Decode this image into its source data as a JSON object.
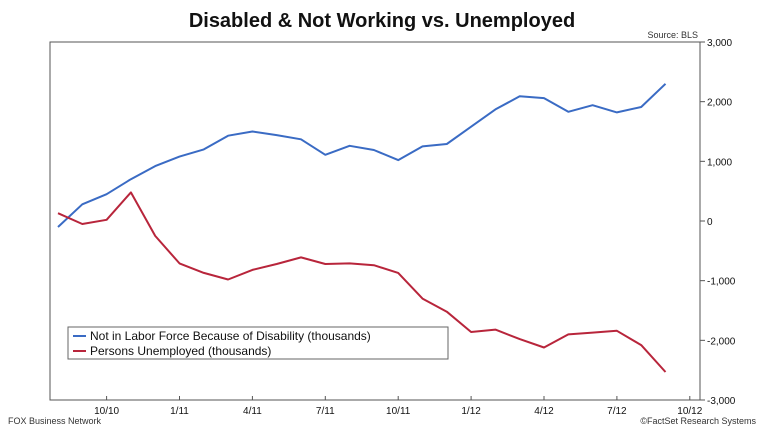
{
  "chart_data": {
    "type": "line",
    "title": "Disabled & Not Working vs. Unemployed",
    "source": "Source: BLS",
    "footer_left": "FOX Business Network",
    "footer_right": "©FactSet Research Systems",
    "ylim": [
      -3000,
      3000
    ],
    "y_ticks": [
      3000,
      2000,
      1000,
      0,
      -1000,
      -2000,
      -3000
    ],
    "y_tick_labels": [
      "3,000",
      "2,000",
      "1,000",
      "0",
      "-1,000",
      "-2,000",
      "-3,000"
    ],
    "x_ticks": [
      "10/10",
      "1/11",
      "4/11",
      "7/11",
      "10/11",
      "1/12",
      "4/12",
      "7/12",
      "10/12"
    ],
    "x": [
      "8/10",
      "9/10",
      "10/10",
      "11/10",
      "12/10",
      "1/11",
      "2/11",
      "3/11",
      "4/11",
      "5/11",
      "6/11",
      "7/11",
      "8/11",
      "9/11",
      "10/11",
      "11/11",
      "12/11",
      "1/12",
      "2/12",
      "3/12",
      "4/12",
      "5/12",
      "6/12",
      "7/12",
      "8/12",
      "9/12",
      "10/12"
    ],
    "series": [
      {
        "name": "Not in Labor Force Because of Disability (thousands)",
        "color": "#3a6bc4",
        "values": [
          -100,
          280,
          450,
          700,
          920,
          1080,
          1200,
          1430,
          1500,
          1440,
          1370,
          1110,
          1260,
          1190,
          1020,
          1250,
          1290,
          1580,
          1870,
          2090,
          2060,
          1830,
          1940,
          1820,
          1910,
          2300,
          null
        ]
      },
      {
        "name": "Persons Unemployed (thousands)",
        "color": "#b8253b",
        "values": [
          130,
          -50,
          20,
          480,
          -250,
          -710,
          -870,
          -980,
          -820,
          -720,
          -610,
          -720,
          -710,
          -740,
          -870,
          -1300,
          -1520,
          -1860,
          -1820,
          -1980,
          -2120,
          -1900,
          -1870,
          -1840,
          -2080,
          -2530,
          null
        ]
      }
    ]
  }
}
